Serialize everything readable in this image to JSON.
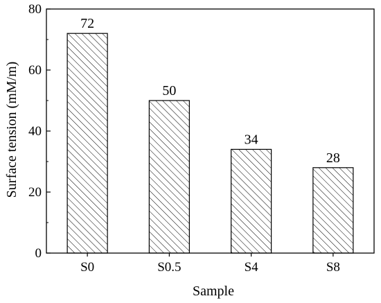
{
  "chart_data": {
    "type": "bar",
    "categories": [
      "S0",
      "S0.5",
      "S4",
      "S8"
    ],
    "values": [
      72,
      50,
      34,
      28
    ],
    "data_labels": [
      "72",
      "50",
      "34",
      "28"
    ],
    "title": "",
    "xlabel": "Sample",
    "ylabel": "Surface tension (mM/m)",
    "ylim": [
      0,
      80
    ],
    "yticks": [
      0,
      20,
      40,
      60,
      80
    ],
    "grid": false,
    "legend": "none",
    "bar_fill": "hatched",
    "colors": {
      "axis": "#000000",
      "bar_stroke": "#000000",
      "hatch": "#000000",
      "background": "#ffffff"
    }
  }
}
